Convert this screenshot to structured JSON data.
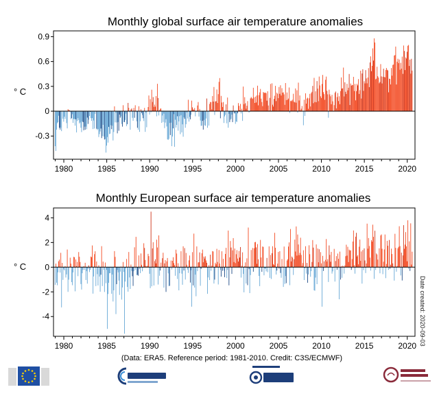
{
  "colors": {
    "positive": "#f23a0e",
    "positive_strong": "#c81e00",
    "negative": "#5aa0d2",
    "negative_strong": "#0a3a7a"
  },
  "chart_data": [
    {
      "type": "bar",
      "title": "Monthly global surface air temperature anomalies",
      "ylabel": "° C",
      "xlabel": "",
      "x_range": [
        1978.8,
        2020.9
      ],
      "ylim": [
        -0.58,
        0.97
      ],
      "yticks": [
        -0.3,
        0,
        0.3,
        0.6,
        0.9
      ],
      "ytick_labels": [
        "-0.3",
        "0",
        "0.3",
        "0.6",
        "0.9"
      ],
      "xticks": [
        1980,
        1985,
        1990,
        1995,
        2000,
        2005,
        2010,
        2015,
        2020
      ],
      "xtick_labels": [
        "1980",
        "1985",
        "1990",
        "1995",
        "2000",
        "2005",
        "2010",
        "2015",
        "2020"
      ],
      "grid": false,
      "legend": "none",
      "series_profile": [
        {
          "x": 1979.0,
          "y": -0.22
        },
        {
          "x": 1980.0,
          "y": -0.13
        },
        {
          "x": 1981.0,
          "y": -0.1
        },
        {
          "x": 1982.0,
          "y": -0.18
        },
        {
          "x": 1983.0,
          "y": -0.05
        },
        {
          "x": 1984.0,
          "y": -0.25
        },
        {
          "x": 1985.0,
          "y": -0.28
        },
        {
          "x": 1986.0,
          "y": -0.2
        },
        {
          "x": 1987.0,
          "y": -0.1
        },
        {
          "x": 1988.0,
          "y": -0.06
        },
        {
          "x": 1989.0,
          "y": -0.14
        },
        {
          "x": 1990.0,
          "y": 0.04
        },
        {
          "x": 1991.0,
          "y": 0.06
        },
        {
          "x": 1992.0,
          "y": -0.22
        },
        {
          "x": 1993.0,
          "y": -0.2
        },
        {
          "x": 1994.0,
          "y": -0.12
        },
        {
          "x": 1995.0,
          "y": 0.0
        },
        {
          "x": 1996.0,
          "y": -0.08
        },
        {
          "x": 1997.0,
          "y": 0.02
        },
        {
          "x": 1998.0,
          "y": 0.2
        },
        {
          "x": 1999.0,
          "y": 0.0
        },
        {
          "x": 2000.0,
          "y": -0.04
        },
        {
          "x": 2001.0,
          "y": 0.1
        },
        {
          "x": 2002.0,
          "y": 0.18
        },
        {
          "x": 2003.0,
          "y": 0.2
        },
        {
          "x": 2004.0,
          "y": 0.14
        },
        {
          "x": 2005.0,
          "y": 0.24
        },
        {
          "x": 2006.0,
          "y": 0.18
        },
        {
          "x": 2007.0,
          "y": 0.22
        },
        {
          "x": 2008.0,
          "y": 0.08
        },
        {
          "x": 2009.0,
          "y": 0.2
        },
        {
          "x": 2010.0,
          "y": 0.3
        },
        {
          "x": 2011.0,
          "y": 0.16
        },
        {
          "x": 2012.0,
          "y": 0.2
        },
        {
          "x": 2013.0,
          "y": 0.26
        },
        {
          "x": 2014.0,
          "y": 0.28
        },
        {
          "x": 2015.0,
          "y": 0.4
        },
        {
          "x": 2016.0,
          "y": 0.62
        },
        {
          "x": 2017.0,
          "y": 0.48
        },
        {
          "x": 2018.0,
          "y": 0.42
        },
        {
          "x": 2019.0,
          "y": 0.56
        },
        {
          "x": 2020.0,
          "y": 0.64
        },
        {
          "x": 2020.6,
          "y": 0.52
        }
      ],
      "monthly_spread": 0.11,
      "highlights": [
        {
          "x": 1979.05,
          "y": -0.48
        },
        {
          "x": 1984.9,
          "y": -0.5
        },
        {
          "x": 1992.9,
          "y": -0.43
        },
        {
          "x": 1998.15,
          "y": 0.4
        },
        {
          "x": 2016.15,
          "y": 0.88
        },
        {
          "x": 2016.25,
          "y": 0.83
        },
        {
          "x": 2020.05,
          "y": 0.79
        },
        {
          "x": 2020.15,
          "y": 0.8
        }
      ]
    },
    {
      "type": "bar",
      "title": "Monthly European surface air temperature anomalies",
      "ylabel": "° C",
      "xlabel": "",
      "x_range": [
        1978.8,
        2020.9
      ],
      "ylim": [
        -5.6,
        4.8
      ],
      "yticks": [
        -4,
        -2,
        0,
        2,
        4
      ],
      "ytick_labels": [
        "-4",
        "-2",
        "0",
        "2",
        "4"
      ],
      "xticks": [
        1980,
        1985,
        1990,
        1995,
        2000,
        2005,
        2010,
        2015,
        2020
      ],
      "xtick_labels": [
        "1980",
        "1985",
        "1990",
        "1995",
        "2000",
        "2005",
        "2010",
        "2015",
        "2020"
      ],
      "grid": false,
      "legend": "none",
      "series_profile": [
        {
          "x": 1979.0,
          "y": -0.7
        },
        {
          "x": 1982.0,
          "y": -0.4
        },
        {
          "x": 1985.0,
          "y": -0.8
        },
        {
          "x": 1987.0,
          "y": -0.6
        },
        {
          "x": 1989.0,
          "y": 0.4
        },
        {
          "x": 1991.0,
          "y": -0.1
        },
        {
          "x": 1993.0,
          "y": -0.2
        },
        {
          "x": 1995.0,
          "y": 0.1
        },
        {
          "x": 1997.0,
          "y": 0.2
        },
        {
          "x": 2000.0,
          "y": 0.6
        },
        {
          "x": 2003.0,
          "y": 0.5
        },
        {
          "x": 2006.0,
          "y": 0.6
        },
        {
          "x": 2008.0,
          "y": 0.7
        },
        {
          "x": 2010.0,
          "y": 0.2
        },
        {
          "x": 2012.0,
          "y": 0.6
        },
        {
          "x": 2014.0,
          "y": 1.0
        },
        {
          "x": 2016.0,
          "y": 0.9
        },
        {
          "x": 2018.0,
          "y": 1.1
        },
        {
          "x": 2020.0,
          "y": 1.5
        },
        {
          "x": 2020.6,
          "y": 1.2
        }
      ],
      "monthly_spread": 1.15,
      "highlights": [
        {
          "x": 1985.1,
          "y": -5.0
        },
        {
          "x": 1987.05,
          "y": -5.4
        },
        {
          "x": 1986.1,
          "y": -3.8
        },
        {
          "x": 1990.15,
          "y": 4.5
        },
        {
          "x": 1994.9,
          "y": -3.2
        },
        {
          "x": 2007.1,
          "y": 3.3
        },
        {
          "x": 2010.05,
          "y": -3.2
        },
        {
          "x": 2012.1,
          "y": -2.6
        },
        {
          "x": 2020.1,
          "y": 3.8
        }
      ]
    }
  ],
  "footer": {
    "source_note": "(Data: ERA5.  Reference period: 1981-2010.  Credit: C3S/ECMWF)",
    "date_created": "Date created: 2020-09-03"
  }
}
